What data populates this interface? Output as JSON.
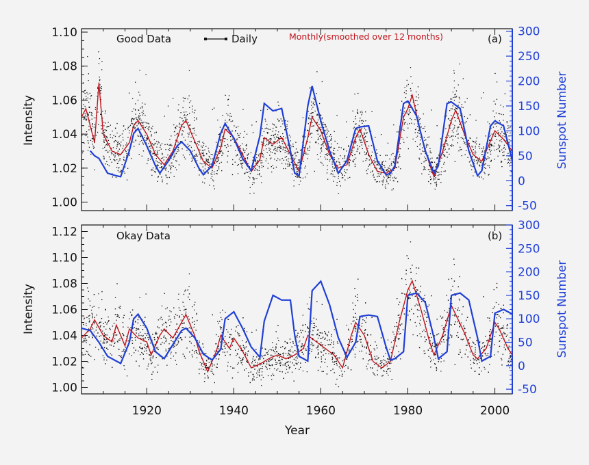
{
  "colors": {
    "daily": "#111111",
    "monthly": "#c0141c",
    "sunspot": "#1f3fd6",
    "axes": "#111111"
  },
  "chart_data": [
    {
      "type": "line",
      "panel_label": "(a)",
      "title": "Good Data",
      "legend": {
        "daily": "Daily",
        "monthly": "Monthly(smoothed over 12 months)"
      },
      "xlabel": "",
      "ylabel": "Intensity",
      "y2label": "Sunspot Number",
      "xlim": [
        1905,
        2004
      ],
      "ylim": [
        0.995,
        1.102
      ],
      "y2lim": [
        -60,
        305
      ],
      "xticks": [
        1920,
        1940,
        1960,
        1980,
        2000
      ],
      "yticks": [
        "1.00",
        "1.02",
        "1.04",
        "1.06",
        "1.08",
        "1.10"
      ],
      "y2ticks": [
        "-50",
        "0",
        "50",
        "100",
        "150",
        "200",
        "250",
        "300"
      ],
      "series": [
        {
          "name": "Monthly(smoothed over 12 months)",
          "axis": "left",
          "x": [
            1905,
            1906,
            1907,
            1908,
            1909,
            1910,
            1912,
            1914,
            1916,
            1917,
            1918,
            1920,
            1922,
            1924,
            1926,
            1928,
            1929,
            1931,
            1933,
            1935,
            1937,
            1938,
            1940,
            1942,
            1944,
            1946,
            1947,
            1949,
            1951,
            1953,
            1955,
            1957,
            1958,
            1960,
            1962,
            1964,
            1966,
            1968,
            1969,
            1971,
            1973,
            1975,
            1977,
            1979,
            1980,
            1981,
            1983,
            1985,
            1986,
            1988,
            1990,
            1991,
            1993,
            1995,
            1997,
            1999,
            2000,
            2002,
            2004
          ],
          "y": [
            1.05,
            1.055,
            1.045,
            1.035,
            1.07,
            1.04,
            1.03,
            1.028,
            1.035,
            1.045,
            1.048,
            1.04,
            1.028,
            1.022,
            1.03,
            1.045,
            1.048,
            1.036,
            1.024,
            1.02,
            1.032,
            1.043,
            1.038,
            1.028,
            1.018,
            1.025,
            1.038,
            1.034,
            1.038,
            1.028,
            1.018,
            1.038,
            1.05,
            1.042,
            1.028,
            1.02,
            1.022,
            1.038,
            1.043,
            1.028,
            1.018,
            1.017,
            1.02,
            1.05,
            1.055,
            1.063,
            1.04,
            1.022,
            1.015,
            1.03,
            1.048,
            1.054,
            1.04,
            1.028,
            1.024,
            1.036,
            1.042,
            1.037,
            1.03
          ]
        },
        {
          "name": "Sunspot Number",
          "axis": "right",
          "x": [
            1907,
            1908,
            1909,
            1911,
            1913,
            1914,
            1916,
            1917,
            1918,
            1920,
            1922,
            1923,
            1925,
            1927,
            1928,
            1930,
            1932,
            1933,
            1935,
            1937,
            1938,
            1940,
            1942,
            1944,
            1946,
            1947,
            1949,
            1951,
            1953,
            1954,
            1955,
            1957,
            1958,
            1960,
            1962,
            1964,
            1966,
            1968,
            1969,
            1971,
            1973,
            1975,
            1976,
            1977,
            1979,
            1980,
            1982,
            1984,
            1986,
            1987,
            1989,
            1990,
            1992,
            1994,
            1996,
            1997,
            1999,
            2000,
            2002,
            2004
          ],
          "y": [
            60,
            50,
            45,
            15,
            10,
            8,
            60,
            95,
            105,
            70,
            30,
            15,
            40,
            70,
            78,
            60,
            25,
            12,
            30,
            95,
            115,
            85,
            45,
            20,
            90,
            155,
            140,
            145,
            60,
            15,
            10,
            150,
            190,
            120,
            60,
            15,
            40,
            105,
            108,
            110,
            40,
            12,
            15,
            30,
            155,
            160,
            130,
            60,
            15,
            30,
            155,
            158,
            145,
            60,
            10,
            20,
            110,
            120,
            110,
            40
          ]
        }
      ]
    },
    {
      "type": "line",
      "panel_label": "(b)",
      "title": "Okay Data",
      "xlabel": "Year",
      "ylabel": "Intensity",
      "y2label": "Sunspot Number",
      "xlim": [
        1905,
        2004
      ],
      "ylim": [
        0.995,
        1.125
      ],
      "y2lim": [
        -60,
        300
      ],
      "xticks": [
        1920,
        1940,
        1960,
        1980,
        2000
      ],
      "yticks": [
        "1.00",
        "1.02",
        "1.04",
        "1.06",
        "1.08",
        "1.10",
        "1.12"
      ],
      "y2ticks": [
        "-50",
        "0",
        "50",
        "100",
        "150",
        "200",
        "250",
        "300"
      ],
      "series": [
        {
          "name": "Monthly(smoothed over 12 months)",
          "axis": "left",
          "x": [
            1905,
            1907,
            1908,
            1910,
            1912,
            1913,
            1915,
            1916,
            1918,
            1920,
            1921,
            1923,
            1924,
            1926,
            1928,
            1929,
            1931,
            1932,
            1934,
            1936,
            1937,
            1939,
            1940,
            1942,
            1944,
            1946,
            1948,
            1950,
            1952,
            1954,
            1956,
            1957,
            1959,
            1961,
            1963,
            1965,
            1967,
            1968,
            1970,
            1972,
            1974,
            1976,
            1978,
            1980,
            1981,
            1983,
            1985,
            1986,
            1988,
            1990,
            1991,
            1993,
            1995,
            1996,
            1998,
            2000,
            2001,
            2003,
            2004
          ],
          "y": [
            1.038,
            1.045,
            1.052,
            1.04,
            1.035,
            1.048,
            1.032,
            1.045,
            1.038,
            1.035,
            1.025,
            1.04,
            1.045,
            1.038,
            1.05,
            1.056,
            1.04,
            1.028,
            1.012,
            1.028,
            1.04,
            1.03,
            1.038,
            1.028,
            1.015,
            1.018,
            1.022,
            1.025,
            1.022,
            1.025,
            1.03,
            1.04,
            1.035,
            1.03,
            1.025,
            1.015,
            1.04,
            1.05,
            1.04,
            1.02,
            1.015,
            1.02,
            1.05,
            1.075,
            1.082,
            1.06,
            1.035,
            1.025,
            1.04,
            1.063,
            1.056,
            1.042,
            1.025,
            1.022,
            1.03,
            1.05,
            1.045,
            1.03,
            1.025
          ]
        },
        {
          "name": "Sunspot Number",
          "axis": "right",
          "x": [
            1905,
            1907,
            1909,
            1911,
            1913,
            1914,
            1916,
            1917,
            1918,
            1920,
            1922,
            1924,
            1926,
            1928,
            1929,
            1931,
            1933,
            1935,
            1937,
            1938,
            1940,
            1942,
            1944,
            1946,
            1947,
            1949,
            1951,
            1953,
            1954,
            1955,
            1957,
            1958,
            1960,
            1962,
            1964,
            1966,
            1968,
            1969,
            1971,
            1973,
            1975,
            1976,
            1977,
            1979,
            1980,
            1982,
            1984,
            1986,
            1987,
            1989,
            1990,
            1992,
            1994,
            1996,
            1997,
            1999,
            2000,
            2002,
            2004
          ],
          "y": [
            80,
            75,
            50,
            20,
            10,
            5,
            50,
            100,
            110,
            80,
            30,
            15,
            45,
            75,
            80,
            60,
            25,
            12,
            35,
            100,
            115,
            80,
            40,
            18,
            95,
            150,
            140,
            140,
            65,
            20,
            10,
            160,
            180,
            130,
            60,
            18,
            50,
            105,
            108,
            105,
            40,
            12,
            15,
            30,
            150,
            155,
            135,
            60,
            15,
            30,
            150,
            155,
            140,
            60,
            10,
            20,
            112,
            120,
            110
          ]
        }
      ]
    }
  ]
}
